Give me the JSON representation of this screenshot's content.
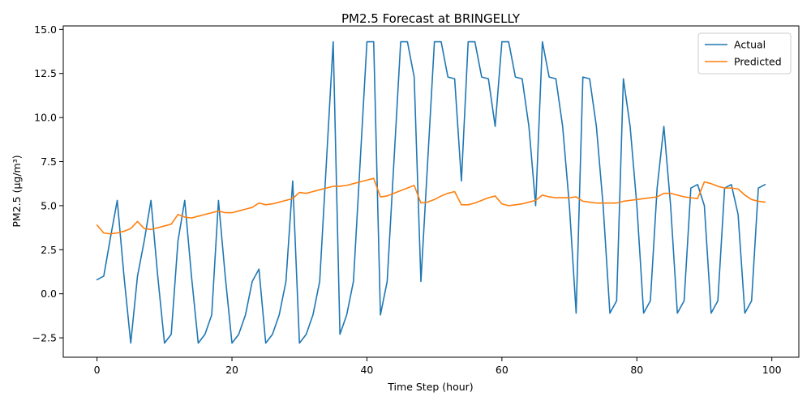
{
  "chart_data": {
    "type": "line",
    "title": "PM2.5 Forecast at BRINGELLY",
    "xlabel": "Time Step (hour)",
    "ylabel": "PM2.5 (µg/m³)",
    "xlim": [
      -5,
      104
    ],
    "ylim": [
      -3.6,
      15.2
    ],
    "xticks": [
      0,
      20,
      40,
      60,
      80,
      100
    ],
    "yticks": [
      -2.5,
      0.0,
      2.5,
      5.0,
      7.5,
      10.0,
      12.5,
      15.0
    ],
    "ytick_labels": [
      "−2.5",
      "0.0",
      "2.5",
      "5.0",
      "7.5",
      "10.0",
      "12.5",
      "15.0"
    ],
    "grid": false,
    "legend_position": "top-right",
    "series": [
      {
        "name": "Actual",
        "color": "#1f77b4",
        "values": [
          0.8,
          1.0,
          3.2,
          5.3,
          1.0,
          -2.8,
          1.0,
          3.0,
          5.3,
          1.0,
          -2.8,
          -2.3,
          3.0,
          5.3,
          1.0,
          -2.8,
          -2.3,
          -1.2,
          5.3,
          1.0,
          -2.8,
          -2.3,
          -1.2,
          0.7,
          1.4,
          -2.8,
          -2.3,
          -1.2,
          0.7,
          6.4,
          -2.8,
          -2.3,
          -1.2,
          0.7,
          7.5,
          14.3,
          -2.3,
          -1.2,
          0.7,
          7.5,
          14.3,
          14.3,
          -1.2,
          0.7,
          7.5,
          14.3,
          14.3,
          12.3,
          0.7,
          7.5,
          14.3,
          14.3,
          12.3,
          12.2,
          6.4,
          14.3,
          14.3,
          12.3,
          12.2,
          9.5,
          14.3,
          14.3,
          12.3,
          12.2,
          9.5,
          5.0,
          14.3,
          12.3,
          12.2,
          9.5,
          5.0,
          -1.1,
          12.3,
          12.2,
          9.5,
          5.0,
          -1.1,
          -0.4,
          12.2,
          9.5,
          5.0,
          -1.1,
          -0.4,
          6.0,
          9.5,
          5.0,
          -1.1,
          -0.4,
          6.0,
          6.2,
          5.0,
          -1.1,
          -0.4,
          6.0,
          6.2,
          4.5,
          -1.1,
          -0.4,
          6.0,
          6.2
        ]
      },
      {
        "name": "Predicted",
        "color": "#ff7f0e",
        "values": [
          3.9,
          3.45,
          3.4,
          3.45,
          3.55,
          3.7,
          4.1,
          3.7,
          3.65,
          3.75,
          3.85,
          3.95,
          4.5,
          4.35,
          4.3,
          4.4,
          4.5,
          4.6,
          4.7,
          4.6,
          4.6,
          4.7,
          4.8,
          4.9,
          5.15,
          5.05,
          5.1,
          5.2,
          5.3,
          5.4,
          5.75,
          5.7,
          5.8,
          5.9,
          6.0,
          6.1,
          6.1,
          6.15,
          6.25,
          6.35,
          6.45,
          6.55,
          5.5,
          5.55,
          5.7,
          5.85,
          6.0,
          6.15,
          5.15,
          5.2,
          5.35,
          5.55,
          5.7,
          5.8,
          5.05,
          5.05,
          5.15,
          5.3,
          5.45,
          5.55,
          5.1,
          5.0,
          5.05,
          5.1,
          5.2,
          5.3,
          5.6,
          5.5,
          5.45,
          5.45,
          5.45,
          5.5,
          5.25,
          5.2,
          5.15,
          5.15,
          5.15,
          5.15,
          5.25,
          5.3,
          5.35,
          5.4,
          5.45,
          5.5,
          5.7,
          5.7,
          5.6,
          5.5,
          5.45,
          5.4,
          6.35,
          6.25,
          6.1,
          6.0,
          6.0,
          5.95,
          5.6,
          5.35,
          5.25,
          5.2
        ]
      }
    ]
  }
}
